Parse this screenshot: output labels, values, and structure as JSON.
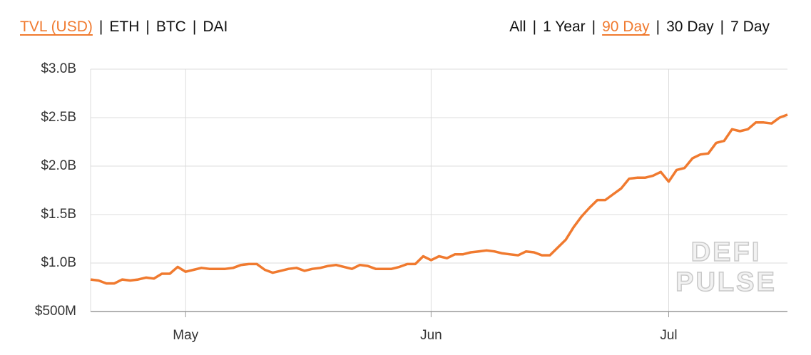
{
  "controls": {
    "metrics": [
      {
        "label": "TVL (USD)",
        "active": true
      },
      {
        "label": "ETH",
        "active": false
      },
      {
        "label": "BTC",
        "active": false
      },
      {
        "label": "DAI",
        "active": false
      }
    ],
    "ranges": [
      {
        "label": "All",
        "active": false
      },
      {
        "label": "1 Year",
        "active": false
      },
      {
        "label": "90 Day",
        "active": true
      },
      {
        "label": "30 Day",
        "active": false
      },
      {
        "label": "7 Day",
        "active": false
      }
    ]
  },
  "chart_data": {
    "type": "line",
    "categories": [
      null,
      null,
      null,
      null,
      null,
      null,
      null,
      null,
      null,
      null,
      null,
      null,
      "May",
      null,
      null,
      null,
      null,
      null,
      null,
      null,
      null,
      null,
      null,
      null,
      null,
      null,
      null,
      null,
      null,
      null,
      null,
      null,
      null,
      null,
      null,
      null,
      null,
      null,
      null,
      null,
      null,
      null,
      null,
      "Jun",
      null,
      null,
      null,
      null,
      null,
      null,
      null,
      null,
      null,
      null,
      null,
      null,
      null,
      null,
      null,
      null,
      null,
      null,
      null,
      null,
      null,
      null,
      null,
      null,
      null,
      null,
      null,
      null,
      null,
      "Jul",
      null,
      null,
      null,
      null,
      null,
      null,
      null,
      null,
      null,
      null,
      null,
      null,
      null,
      null,
      null
    ],
    "series": [
      {
        "name": "TVL (USD)",
        "color": "#f07a2f",
        "values": [
          830000000,
          820000000,
          790000000,
          790000000,
          830000000,
          820000000,
          830000000,
          850000000,
          840000000,
          890000000,
          890000000,
          960000000,
          910000000,
          930000000,
          950000000,
          940000000,
          940000000,
          940000000,
          950000000,
          980000000,
          990000000,
          990000000,
          930000000,
          900000000,
          920000000,
          940000000,
          950000000,
          920000000,
          940000000,
          950000000,
          970000000,
          980000000,
          960000000,
          940000000,
          980000000,
          970000000,
          940000000,
          940000000,
          940000000,
          960000000,
          990000000,
          990000000,
          1070000000,
          1030000000,
          1070000000,
          1050000000,
          1090000000,
          1090000000,
          1110000000,
          1120000000,
          1130000000,
          1120000000,
          1100000000,
          1090000000,
          1080000000,
          1120000000,
          1110000000,
          1080000000,
          1080000000,
          1160000000,
          1240000000,
          1370000000,
          1480000000,
          1570000000,
          1650000000,
          1650000000,
          1710000000,
          1770000000,
          1870000000,
          1880000000,
          1880000000,
          1900000000,
          1940000000,
          1840000000,
          1960000000,
          1980000000,
          2080000000,
          2120000000,
          2130000000,
          2240000000,
          2260000000,
          2380000000,
          2360000000,
          2380000000,
          2450000000,
          2450000000,
          2440000000,
          2500000000,
          2530000000
        ]
      }
    ],
    "ylim": [
      500000000,
      3000000000
    ],
    "yticks": [
      {
        "value": 500000000,
        "label": "$500M"
      },
      {
        "value": 1000000000,
        "label": "$1.0B"
      },
      {
        "value": 1500000000,
        "label": "$1.5B"
      },
      {
        "value": 2000000000,
        "label": "$2.0B"
      },
      {
        "value": 2500000000,
        "label": "$2.5B"
      },
      {
        "value": 3000000000,
        "label": "$3.0B"
      }
    ],
    "grid": true,
    "watermark": [
      "DEFI",
      "PULSE"
    ]
  }
}
